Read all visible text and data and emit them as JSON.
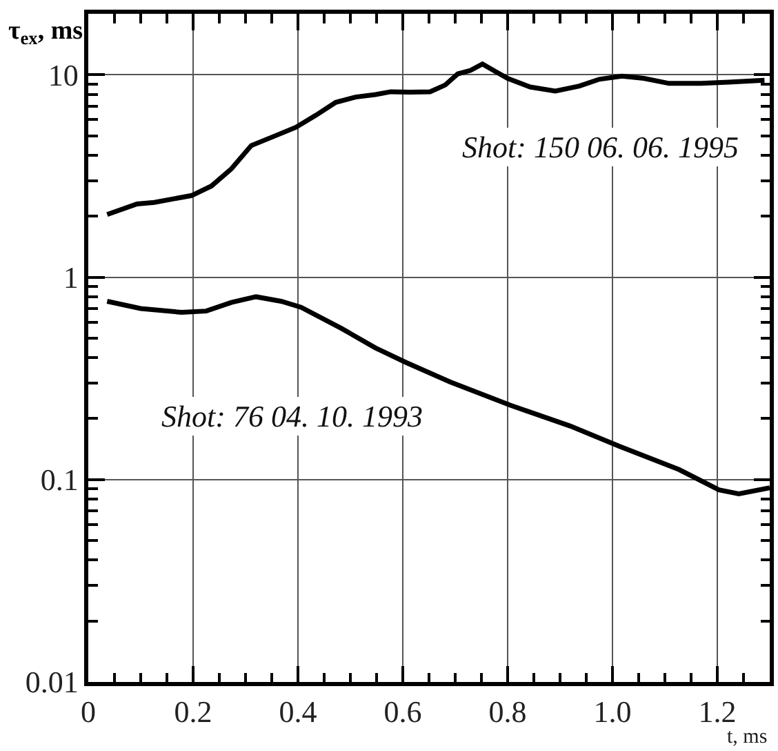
{
  "chart_data": {
    "type": "line",
    "xlabel": "t, ms",
    "ylabel": "τ$_{ex}$, ms",
    "log": "y",
    "grid": true,
    "marker": "none",
    "line_style": "solid",
    "xlim": [
      0,
      1.3
    ],
    "ylim": [
      0.01,
      20
    ],
    "xticks": [
      0,
      0.2,
      0.4,
      0.6,
      0.8,
      {
        "value": 1.0,
        "label": "1.0"
      },
      1.2,
      {
        "value": 0.05,
        "label": null
      },
      {
        "value": 0.1,
        "label": null
      },
      {
        "value": 0.15,
        "label": null
      },
      {
        "value": 0.25,
        "label": null
      },
      {
        "value": 0.3,
        "label": null
      },
      {
        "value": 0.35,
        "label": null
      },
      {
        "value": 0.45,
        "label": null
      },
      {
        "value": 0.5,
        "label": null
      },
      {
        "value": 0.55,
        "label": null
      },
      {
        "value": 0.65,
        "label": null
      },
      {
        "value": 0.7,
        "label": null
      },
      {
        "value": 0.75,
        "label": null
      },
      {
        "value": 0.85,
        "label": null
      },
      {
        "value": 0.9,
        "label": null
      },
      {
        "value": 0.95,
        "label": null
      },
      {
        "value": 1.05,
        "label": null
      },
      {
        "value": 1.1,
        "label": null
      },
      {
        "value": 1.15,
        "label": null
      },
      {
        "value": 1.25,
        "label": null
      }
    ],
    "yticks": [
      0.01,
      0.1,
      1,
      10,
      {
        "value": 0.02,
        "label": null
      },
      {
        "value": 0.03,
        "label": null
      },
      {
        "value": 0.04,
        "label": null
      },
      {
        "value": 0.05,
        "label": null
      },
      {
        "value": 0.06,
        "label": null
      },
      {
        "value": 0.07,
        "label": null
      },
      {
        "value": 0.08,
        "label": null
      },
      {
        "value": 0.09,
        "label": null
      },
      {
        "value": 0.2,
        "label": null
      },
      {
        "value": 0.3,
        "label": null
      },
      {
        "value": 0.4,
        "label": null
      },
      {
        "value": 0.5,
        "label": null
      },
      {
        "value": 0.6,
        "label": null
      },
      {
        "value": 0.7,
        "label": null
      },
      {
        "value": 0.8,
        "label": null
      },
      {
        "value": 0.9,
        "label": null
      },
      {
        "value": 2,
        "label": null
      },
      {
        "value": 3,
        "label": null
      },
      {
        "value": 4,
        "label": null
      },
      {
        "value": 5,
        "label": null
      },
      {
        "value": 6,
        "label": null
      },
      {
        "value": 7,
        "label": null
      },
      {
        "value": 8,
        "label": null
      },
      {
        "value": 9,
        "label": null
      }
    ],
    "series": [
      {
        "color": "#000000",
        "x": [
          0.036,
          0.093,
          0.126,
          0.197,
          0.235,
          0.273,
          0.311,
          0.349,
          0.396,
          0.434,
          0.472,
          0.51,
          0.548,
          0.577,
          0.614,
          0.652,
          0.681,
          0.705,
          0.729,
          0.752,
          0.776,
          0.8,
          0.843,
          0.891,
          0.937,
          0.975,
          1.018,
          1.06,
          1.108,
          1.165,
          1.222,
          1.29
        ],
        "values": [
          2.04,
          2.3,
          2.34,
          2.53,
          2.82,
          3.43,
          4.47,
          4.9,
          5.5,
          6.3,
          7.3,
          7.76,
          7.98,
          8.24,
          8.2,
          8.24,
          8.9,
          10.1,
          10.5,
          11.3,
          10.4,
          9.6,
          8.7,
          8.3,
          8.8,
          9.5,
          9.85,
          9.6,
          9.06,
          9.06,
          9.2,
          9.4
        ]
      },
      {
        "color": "#000000",
        "x": [
          0.036,
          0.1,
          0.178,
          0.225,
          0.273,
          0.32,
          0.368,
          0.406,
          0.482,
          0.548,
          0.605,
          0.69,
          0.805,
          0.919,
          1.013,
          1.127,
          1.203,
          1.241,
          1.3
        ],
        "values": [
          0.76,
          0.7,
          0.67,
          0.68,
          0.75,
          0.8,
          0.76,
          0.71,
          0.56,
          0.447,
          0.38,
          0.304,
          0.233,
          0.184,
          0.146,
          0.112,
          0.089,
          0.085,
          0.091
        ]
      }
    ],
    "annotations": [
      "Shot: 150 06. 06. 1995",
      "Shot: 76 04. 10. 1993"
    ]
  }
}
